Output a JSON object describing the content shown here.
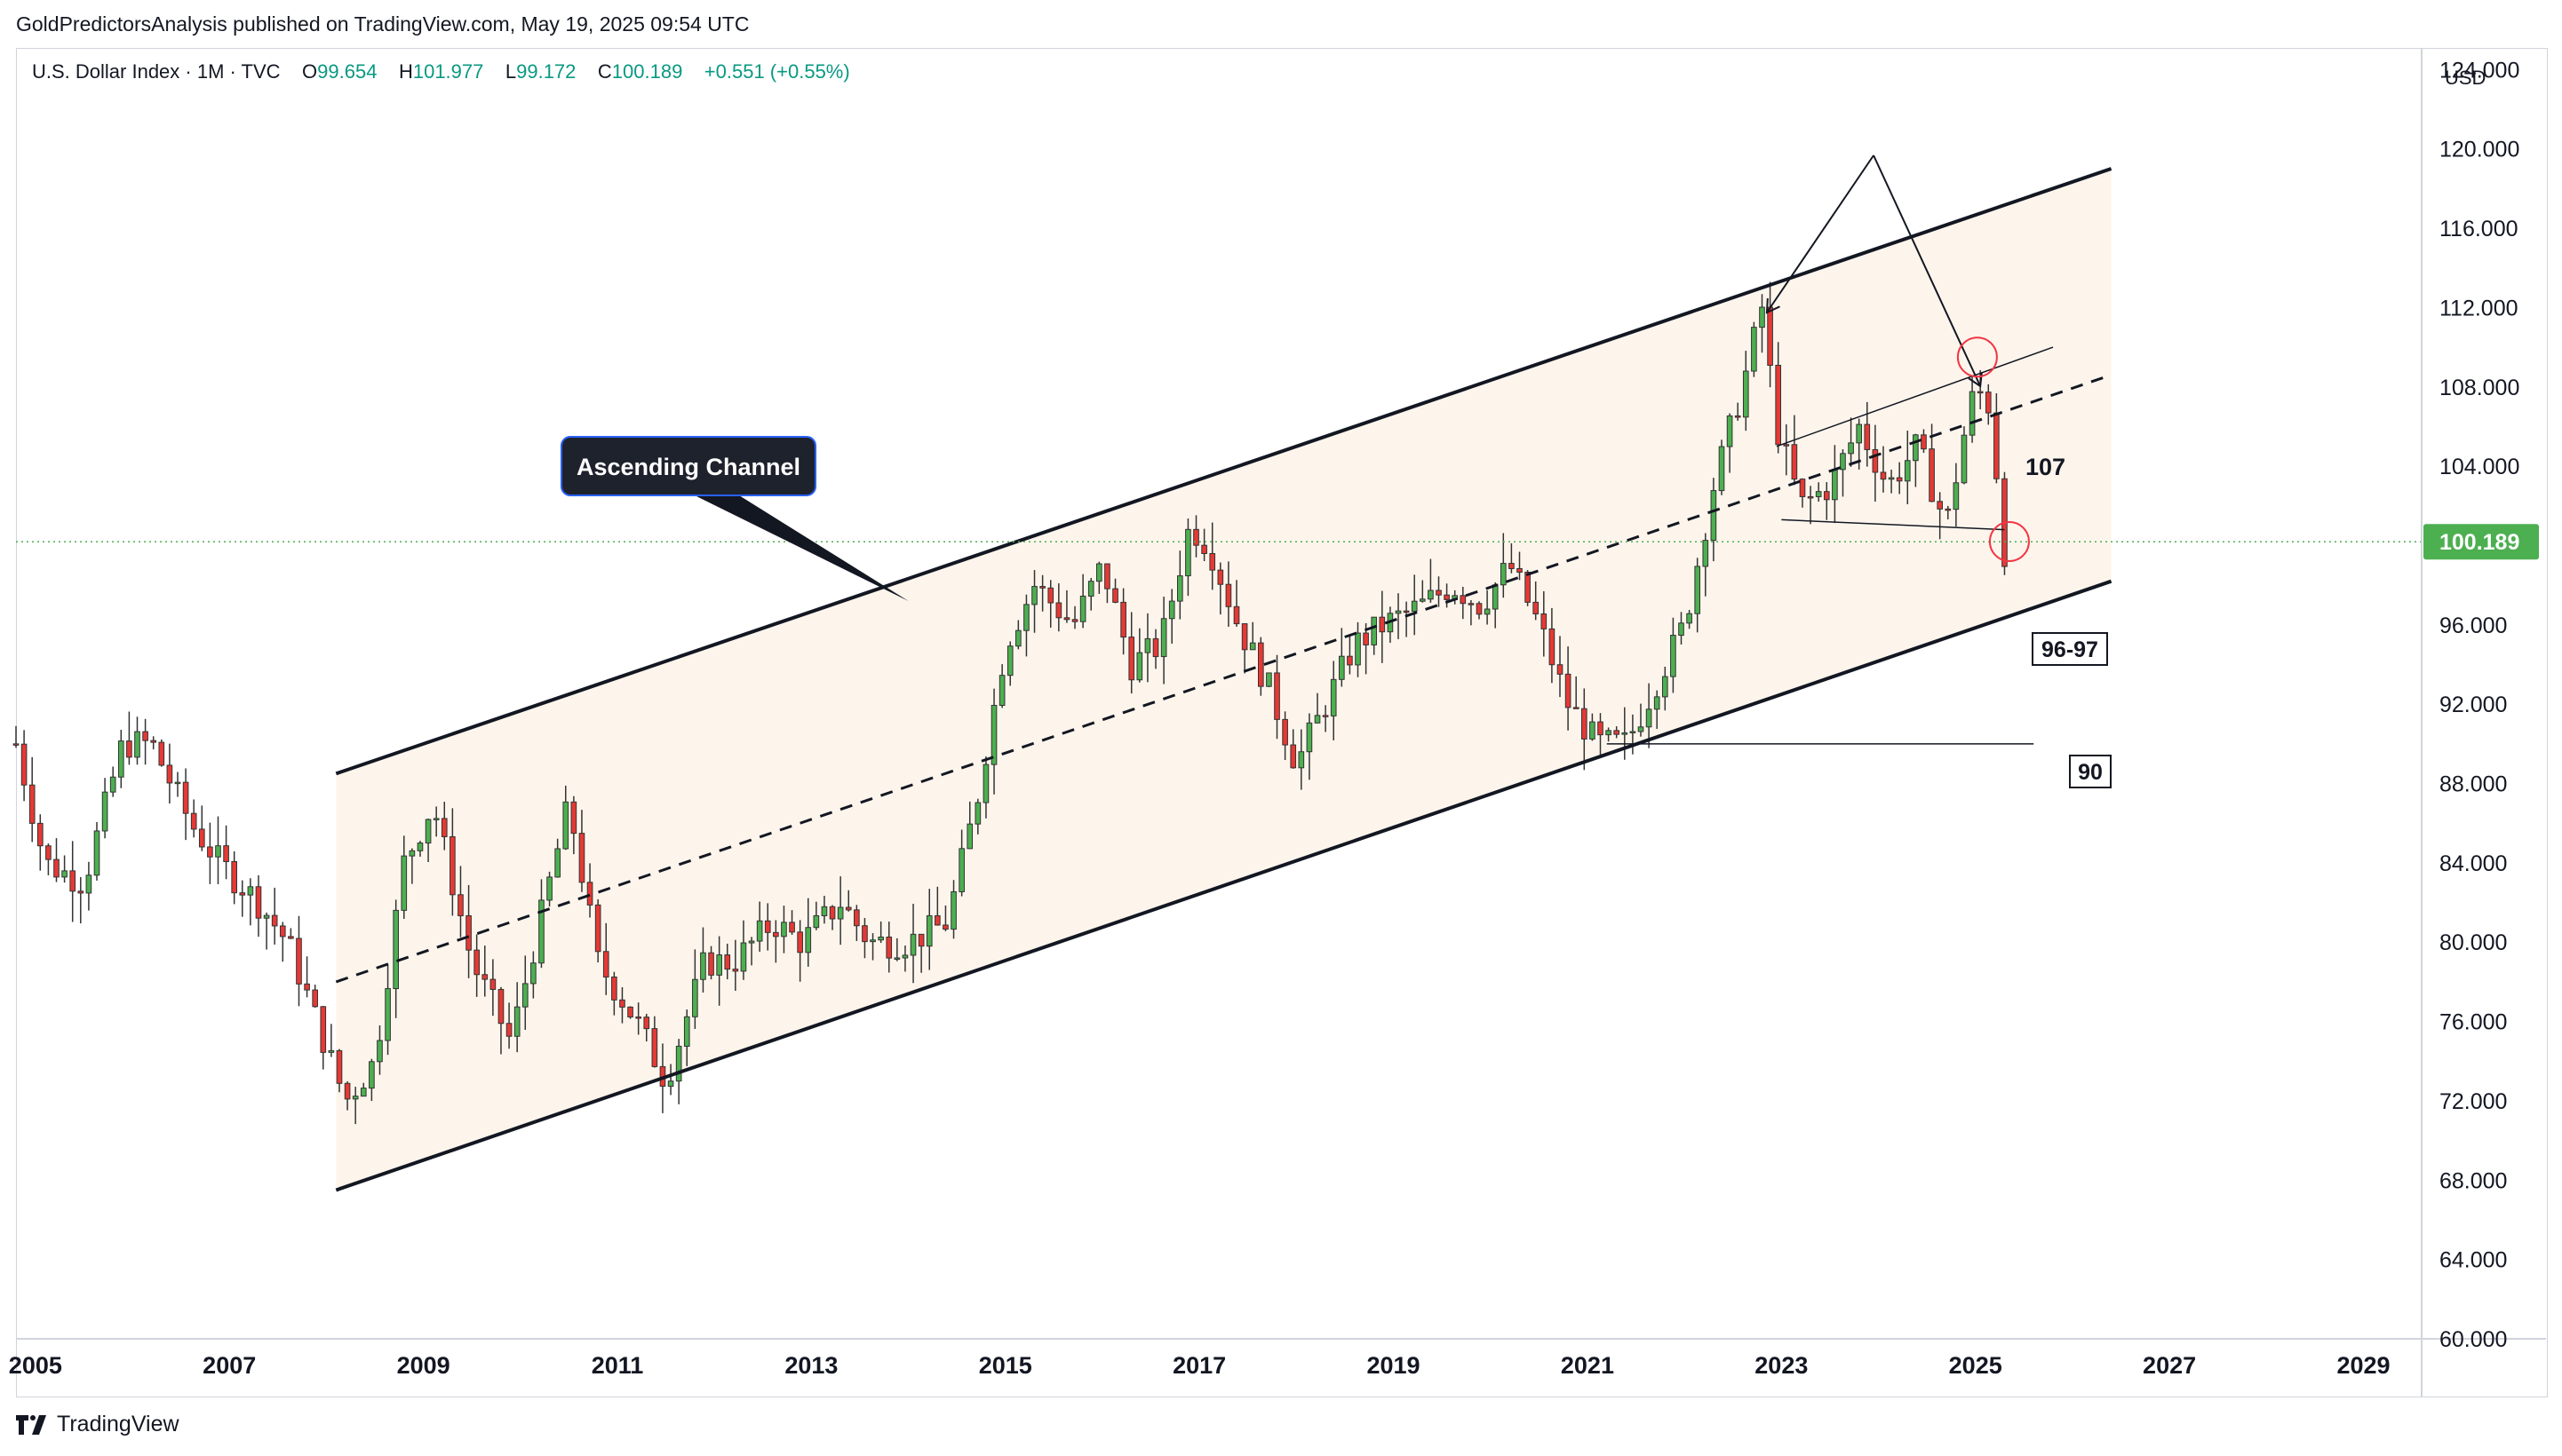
{
  "attribution": "GoldPredictorsAnalysis published on TradingView.com, May 19, 2025 09:54 UTC",
  "legend": {
    "symbol": "U.S. Dollar Index · 1M · TVC",
    "o_label": "O",
    "o_value": "99.654",
    "h_label": "H",
    "h_value": "101.977",
    "l_label": "L",
    "l_value": "99.172",
    "c_label": "C",
    "c_value": "100.189",
    "change": "+0.551 (+0.55%)"
  },
  "currency": "USD",
  "footer": {
    "brand": "TradingView",
    "logo_icon": "tradingview-logo-icon"
  },
  "colors": {
    "up": "#089981",
    "down": "#f23645",
    "up_body": "#4caf50",
    "down_body": "#e53935",
    "channel_fill": "#fdf5ec",
    "last_price_bg": "#4caf50"
  },
  "annotations": {
    "callout": "Ascending Channel",
    "level_107": "107",
    "level_9697": "96-97",
    "level_90": "90"
  },
  "chart_data": {
    "type": "candlestick",
    "title": "",
    "series_name": "U.S. Dollar Index",
    "interval": "1M",
    "x_ticks": [
      "2005",
      "2007",
      "2009",
      "2011",
      "2013",
      "2015",
      "2017",
      "2019",
      "2021",
      "2023",
      "2025",
      "2027",
      "2029"
    ],
    "y_ticks": [
      "124.000",
      "120.000",
      "116.000",
      "112.000",
      "108.000",
      "104.000",
      "100.000",
      "96.000",
      "92.000",
      "88.000",
      "84.000",
      "80.000",
      "76.000",
      "72.000",
      "68.000",
      "64.000",
      "60.000"
    ],
    "ylim": [
      60,
      125
    ],
    "xlim": [
      2004.8,
      2029.6
    ],
    "last_price": 100.189,
    "last_price_label": "100.189",
    "ohlc_anchor_points": [
      {
        "t": 2004.8,
        "close": 90
      },
      {
        "t": 2005.1,
        "close": 84
      },
      {
        "t": 2005.5,
        "close": 83
      },
      {
        "t": 2005.9,
        "close": 90
      },
      {
        "t": 2006.2,
        "close": 90
      },
      {
        "t": 2006.6,
        "close": 86
      },
      {
        "t": 2006.9,
        "close": 84
      },
      {
        "t": 2007.3,
        "close": 82
      },
      {
        "t": 2007.6,
        "close": 80
      },
      {
        "t": 2007.9,
        "close": 76
      },
      {
        "t": 2008.2,
        "close": 72
      },
      {
        "t": 2008.5,
        "close": 74
      },
      {
        "t": 2008.8,
        "close": 84
      },
      {
        "t": 2009.1,
        "close": 87
      },
      {
        "t": 2009.5,
        "close": 79
      },
      {
        "t": 2009.9,
        "close": 75
      },
      {
        "t": 2010.2,
        "close": 81
      },
      {
        "t": 2010.5,
        "close": 87
      },
      {
        "t": 2010.8,
        "close": 79
      },
      {
        "t": 2011.2,
        "close": 76
      },
      {
        "t": 2011.5,
        "close": 73
      },
      {
        "t": 2011.9,
        "close": 79
      },
      {
        "t": 2012.2,
        "close": 79
      },
      {
        "t": 2012.6,
        "close": 81
      },
      {
        "t": 2012.9,
        "close": 80
      },
      {
        "t": 2013.3,
        "close": 82
      },
      {
        "t": 2013.6,
        "close": 80
      },
      {
        "t": 2014.0,
        "close": 80
      },
      {
        "t": 2014.4,
        "close": 81
      },
      {
        "t": 2014.7,
        "close": 87
      },
      {
        "t": 2015.0,
        "close": 95
      },
      {
        "t": 2015.3,
        "close": 98
      },
      {
        "t": 2015.7,
        "close": 96
      },
      {
        "t": 2016.0,
        "close": 99
      },
      {
        "t": 2016.3,
        "close": 94
      },
      {
        "t": 2016.6,
        "close": 95
      },
      {
        "t": 2016.9,
        "close": 101
      },
      {
        "t": 2017.1,
        "close": 100
      },
      {
        "t": 2017.4,
        "close": 96
      },
      {
        "t": 2017.7,
        "close": 93
      },
      {
        "t": 2018.0,
        "close": 89
      },
      {
        "t": 2018.3,
        "close": 92
      },
      {
        "t": 2018.6,
        "close": 95
      },
      {
        "t": 2018.9,
        "close": 96
      },
      {
        "t": 2019.3,
        "close": 97
      },
      {
        "t": 2019.6,
        "close": 98
      },
      {
        "t": 2019.9,
        "close": 97
      },
      {
        "t": 2020.2,
        "close": 99
      },
      {
        "t": 2020.5,
        "close": 96
      },
      {
        "t": 2020.8,
        "close": 92
      },
      {
        "t": 2021.1,
        "close": 90
      },
      {
        "t": 2021.4,
        "close": 90
      },
      {
        "t": 2021.7,
        "close": 93
      },
      {
        "t": 2022.0,
        "close": 96
      },
      {
        "t": 2022.3,
        "close": 103
      },
      {
        "t": 2022.6,
        "close": 108
      },
      {
        "t": 2022.8,
        "close": 112
      },
      {
        "t": 2022.95,
        "close": 106
      },
      {
        "t": 2023.2,
        "close": 102
      },
      {
        "t": 2023.5,
        "close": 103
      },
      {
        "t": 2023.8,
        "close": 106
      },
      {
        "t": 2024.1,
        "close": 103
      },
      {
        "t": 2024.4,
        "close": 105
      },
      {
        "t": 2024.7,
        "close": 101
      },
      {
        "t": 2024.9,
        "close": 106
      },
      {
        "t": 2025.0,
        "close": 108
      },
      {
        "t": 2025.15,
        "close": 107
      },
      {
        "t": 2025.3,
        "close": 99.7
      },
      {
        "t": 2025.38,
        "close": 100.189
      }
    ],
    "lines": {
      "channel_upper": [
        [
          2008.1,
          88.5
        ],
        [
          2026.4,
          119.0
        ]
      ],
      "channel_lower": [
        [
          2008.1,
          67.5
        ],
        [
          2026.4,
          98.2
        ]
      ],
      "channel_mid": [
        [
          2008.1,
          78.0
        ],
        [
          2026.4,
          108.6
        ]
      ],
      "range_top": [
        [
          2022.95,
          105.0
        ],
        [
          2025.8,
          110.0
        ]
      ],
      "range_bottom": [
        [
          2023.0,
          101.3
        ],
        [
          2025.3,
          100.8
        ]
      ],
      "level_90_line": [
        [
          2021.2,
          90.0
        ],
        [
          2025.6,
          90.0
        ]
      ]
    }
  }
}
